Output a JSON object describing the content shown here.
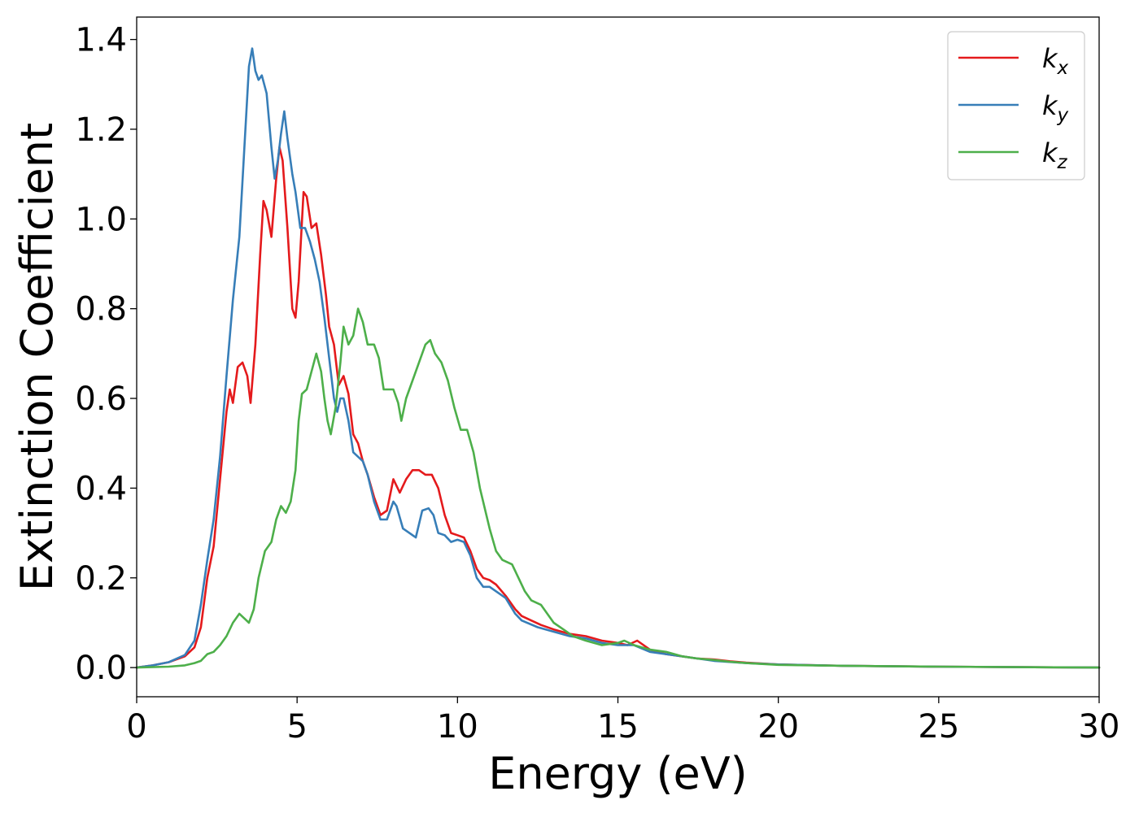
{
  "chart_data": {
    "type": "line",
    "title": "",
    "xlabel": "Energy (eV)",
    "ylabel": "Extinction Coefficient",
    "xlim": [
      0,
      30
    ],
    "ylim": [
      -0.065,
      1.45
    ],
    "xticks": [
      0,
      5,
      10,
      15,
      20,
      25,
      30
    ],
    "yticks": [
      0.0,
      0.2,
      0.4,
      0.6,
      0.8,
      1.0,
      1.2,
      1.4
    ],
    "xtick_labels": [
      "0",
      "5",
      "10",
      "15",
      "20",
      "25",
      "30"
    ],
    "ytick_labels": [
      "0.0",
      "0.2",
      "0.4",
      "0.6",
      "0.8",
      "1.0",
      "1.2",
      "1.4"
    ],
    "grid": false,
    "legend": "top-right",
    "series": [
      {
        "name": "kx",
        "symbol": "k",
        "subscript": "x",
        "color": "#e41a1c",
        "points": [
          [
            0,
            0
          ],
          [
            0.5,
            0.005
          ],
          [
            1.0,
            0.012
          ],
          [
            1.5,
            0.025
          ],
          [
            1.8,
            0.045
          ],
          [
            2.0,
            0.09
          ],
          [
            2.2,
            0.2
          ],
          [
            2.4,
            0.27
          ],
          [
            2.6,
            0.42
          ],
          [
            2.8,
            0.57
          ],
          [
            2.9,
            0.62
          ],
          [
            3.0,
            0.59
          ],
          [
            3.15,
            0.67
          ],
          [
            3.3,
            0.68
          ],
          [
            3.45,
            0.65
          ],
          [
            3.55,
            0.59
          ],
          [
            3.7,
            0.72
          ],
          [
            3.85,
            0.92
          ],
          [
            3.95,
            1.04
          ],
          [
            4.05,
            1.02
          ],
          [
            4.2,
            0.96
          ],
          [
            4.35,
            1.09
          ],
          [
            4.45,
            1.16
          ],
          [
            4.55,
            1.13
          ],
          [
            4.7,
            0.98
          ],
          [
            4.85,
            0.8
          ],
          [
            4.95,
            0.78
          ],
          [
            5.05,
            0.86
          ],
          [
            5.2,
            1.06
          ],
          [
            5.3,
            1.05
          ],
          [
            5.45,
            0.98
          ],
          [
            5.6,
            0.99
          ],
          [
            5.75,
            0.92
          ],
          [
            5.9,
            0.83
          ],
          [
            6.0,
            0.76
          ],
          [
            6.15,
            0.72
          ],
          [
            6.3,
            0.63
          ],
          [
            6.45,
            0.65
          ],
          [
            6.6,
            0.61
          ],
          [
            6.75,
            0.52
          ],
          [
            6.9,
            0.5
          ],
          [
            7.05,
            0.46
          ],
          [
            7.2,
            0.43
          ],
          [
            7.4,
            0.38
          ],
          [
            7.6,
            0.34
          ],
          [
            7.8,
            0.35
          ],
          [
            8.0,
            0.42
          ],
          [
            8.2,
            0.39
          ],
          [
            8.4,
            0.42
          ],
          [
            8.6,
            0.44
          ],
          [
            8.8,
            0.44
          ],
          [
            9.0,
            0.43
          ],
          [
            9.2,
            0.43
          ],
          [
            9.4,
            0.4
          ],
          [
            9.6,
            0.34
          ],
          [
            9.8,
            0.3
          ],
          [
            10.0,
            0.295
          ],
          [
            10.2,
            0.29
          ],
          [
            10.4,
            0.26
          ],
          [
            10.6,
            0.22
          ],
          [
            10.8,
            0.2
          ],
          [
            11.0,
            0.195
          ],
          [
            11.2,
            0.185
          ],
          [
            11.5,
            0.16
          ],
          [
            11.8,
            0.13
          ],
          [
            12.0,
            0.115
          ],
          [
            12.3,
            0.105
          ],
          [
            12.6,
            0.095
          ],
          [
            13.0,
            0.085
          ],
          [
            13.5,
            0.075
          ],
          [
            14.0,
            0.07
          ],
          [
            14.5,
            0.06
          ],
          [
            15.0,
            0.055
          ],
          [
            15.3,
            0.05
          ],
          [
            15.6,
            0.06
          ],
          [
            16.0,
            0.04
          ],
          [
            16.5,
            0.03
          ],
          [
            17.0,
            0.025
          ],
          [
            17.5,
            0.02
          ],
          [
            18.0,
            0.018
          ],
          [
            18.5,
            0.014
          ],
          [
            19.0,
            0.011
          ],
          [
            20.0,
            0.007
          ],
          [
            22.0,
            0.004
          ],
          [
            25.0,
            0.002
          ],
          [
            30.0,
            0.0
          ]
        ]
      },
      {
        "name": "ky",
        "symbol": "k",
        "subscript": "y",
        "color": "#377eb8",
        "points": [
          [
            0,
            0
          ],
          [
            0.5,
            0.005
          ],
          [
            1.0,
            0.012
          ],
          [
            1.5,
            0.028
          ],
          [
            1.8,
            0.06
          ],
          [
            2.0,
            0.14
          ],
          [
            2.2,
            0.24
          ],
          [
            2.4,
            0.33
          ],
          [
            2.6,
            0.47
          ],
          [
            2.8,
            0.65
          ],
          [
            3.0,
            0.82
          ],
          [
            3.2,
            0.96
          ],
          [
            3.35,
            1.15
          ],
          [
            3.5,
            1.34
          ],
          [
            3.6,
            1.38
          ],
          [
            3.7,
            1.33
          ],
          [
            3.8,
            1.31
          ],
          [
            3.9,
            1.32
          ],
          [
            4.05,
            1.28
          ],
          [
            4.2,
            1.16
          ],
          [
            4.3,
            1.09
          ],
          [
            4.4,
            1.13
          ],
          [
            4.5,
            1.19
          ],
          [
            4.6,
            1.24
          ],
          [
            4.7,
            1.18
          ],
          [
            4.85,
            1.1
          ],
          [
            4.95,
            1.06
          ],
          [
            5.1,
            0.98
          ],
          [
            5.25,
            0.98
          ],
          [
            5.4,
            0.95
          ],
          [
            5.55,
            0.91
          ],
          [
            5.7,
            0.86
          ],
          [
            5.85,
            0.78
          ],
          [
            6.0,
            0.69
          ],
          [
            6.15,
            0.6
          ],
          [
            6.25,
            0.57
          ],
          [
            6.35,
            0.6
          ],
          [
            6.45,
            0.6
          ],
          [
            6.6,
            0.55
          ],
          [
            6.75,
            0.48
          ],
          [
            6.9,
            0.47
          ],
          [
            7.05,
            0.46
          ],
          [
            7.2,
            0.43
          ],
          [
            7.4,
            0.37
          ],
          [
            7.6,
            0.33
          ],
          [
            7.8,
            0.33
          ],
          [
            8.0,
            0.37
          ],
          [
            8.1,
            0.36
          ],
          [
            8.3,
            0.31
          ],
          [
            8.5,
            0.3
          ],
          [
            8.7,
            0.29
          ],
          [
            8.9,
            0.35
          ],
          [
            9.1,
            0.355
          ],
          [
            9.25,
            0.34
          ],
          [
            9.4,
            0.3
          ],
          [
            9.6,
            0.295
          ],
          [
            9.8,
            0.28
          ],
          [
            10.0,
            0.285
          ],
          [
            10.2,
            0.28
          ],
          [
            10.4,
            0.25
          ],
          [
            10.6,
            0.2
          ],
          [
            10.8,
            0.18
          ],
          [
            11.0,
            0.18
          ],
          [
            11.2,
            0.17
          ],
          [
            11.5,
            0.155
          ],
          [
            11.8,
            0.12
          ],
          [
            12.0,
            0.105
          ],
          [
            12.5,
            0.09
          ],
          [
            13.0,
            0.08
          ],
          [
            13.5,
            0.07
          ],
          [
            14.0,
            0.065
          ],
          [
            14.5,
            0.055
          ],
          [
            15.0,
            0.05
          ],
          [
            15.5,
            0.05
          ],
          [
            16.0,
            0.035
          ],
          [
            16.5,
            0.03
          ],
          [
            17.0,
            0.025
          ],
          [
            17.5,
            0.02
          ],
          [
            18.0,
            0.015
          ],
          [
            19.0,
            0.01
          ],
          [
            20.0,
            0.007
          ],
          [
            22.0,
            0.004
          ],
          [
            25.0,
            0.002
          ],
          [
            30.0,
            0.0
          ]
        ]
      },
      {
        "name": "kz",
        "symbol": "k",
        "subscript": "z",
        "color": "#4daf4a",
        "points": [
          [
            0,
            0
          ],
          [
            1.0,
            0.002
          ],
          [
            1.5,
            0.005
          ],
          [
            1.8,
            0.01
          ],
          [
            2.0,
            0.015
          ],
          [
            2.2,
            0.03
          ],
          [
            2.4,
            0.035
          ],
          [
            2.6,
            0.05
          ],
          [
            2.8,
            0.07
          ],
          [
            3.0,
            0.1
          ],
          [
            3.2,
            0.12
          ],
          [
            3.35,
            0.11
          ],
          [
            3.5,
            0.1
          ],
          [
            3.65,
            0.13
          ],
          [
            3.8,
            0.2
          ],
          [
            4.0,
            0.26
          ],
          [
            4.2,
            0.28
          ],
          [
            4.35,
            0.33
          ],
          [
            4.5,
            0.36
          ],
          [
            4.65,
            0.345
          ],
          [
            4.8,
            0.37
          ],
          [
            4.95,
            0.44
          ],
          [
            5.05,
            0.55
          ],
          [
            5.15,
            0.61
          ],
          [
            5.3,
            0.62
          ],
          [
            5.45,
            0.66
          ],
          [
            5.6,
            0.7
          ],
          [
            5.75,
            0.66
          ],
          [
            5.85,
            0.6
          ],
          [
            5.95,
            0.55
          ],
          [
            6.05,
            0.52
          ],
          [
            6.2,
            0.58
          ],
          [
            6.35,
            0.68
          ],
          [
            6.45,
            0.76
          ],
          [
            6.6,
            0.72
          ],
          [
            6.75,
            0.74
          ],
          [
            6.9,
            0.8
          ],
          [
            7.05,
            0.77
          ],
          [
            7.2,
            0.72
          ],
          [
            7.4,
            0.72
          ],
          [
            7.55,
            0.69
          ],
          [
            7.7,
            0.62
          ],
          [
            7.85,
            0.62
          ],
          [
            8.0,
            0.62
          ],
          [
            8.15,
            0.59
          ],
          [
            8.25,
            0.55
          ],
          [
            8.4,
            0.6
          ],
          [
            8.6,
            0.64
          ],
          [
            8.8,
            0.68
          ],
          [
            9.0,
            0.72
          ],
          [
            9.15,
            0.73
          ],
          [
            9.3,
            0.7
          ],
          [
            9.5,
            0.68
          ],
          [
            9.7,
            0.64
          ],
          [
            9.9,
            0.58
          ],
          [
            10.1,
            0.53
          ],
          [
            10.3,
            0.53
          ],
          [
            10.5,
            0.48
          ],
          [
            10.7,
            0.4
          ],
          [
            11.0,
            0.31
          ],
          [
            11.2,
            0.26
          ],
          [
            11.4,
            0.24
          ],
          [
            11.7,
            0.23
          ],
          [
            11.9,
            0.2
          ],
          [
            12.1,
            0.17
          ],
          [
            12.3,
            0.15
          ],
          [
            12.6,
            0.14
          ],
          [
            12.8,
            0.12
          ],
          [
            13.0,
            0.1
          ],
          [
            13.3,
            0.085
          ],
          [
            13.6,
            0.07
          ],
          [
            14.0,
            0.06
          ],
          [
            14.5,
            0.05
          ],
          [
            15.0,
            0.055
          ],
          [
            15.2,
            0.06
          ],
          [
            15.5,
            0.05
          ],
          [
            16.0,
            0.04
          ],
          [
            16.5,
            0.035
          ],
          [
            17.0,
            0.025
          ],
          [
            17.5,
            0.02
          ],
          [
            18.0,
            0.017
          ],
          [
            18.5,
            0.013
          ],
          [
            19.0,
            0.01
          ],
          [
            20.0,
            0.006
          ],
          [
            22.0,
            0.004
          ],
          [
            25.0,
            0.002
          ],
          [
            30.0,
            0.0
          ]
        ]
      }
    ]
  }
}
